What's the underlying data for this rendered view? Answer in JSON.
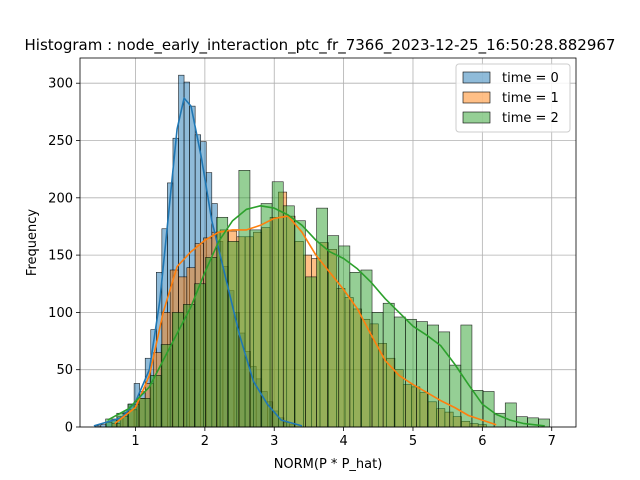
{
  "chart_data": {
    "type": "histogram",
    "title": "Histogram : node_early_interaction_ptc_fr_7366_2023-12-25_16:50:28.882967",
    "xlabel": "NORM(P * P_hat)",
    "ylabel": "Frequency",
    "xlim": [
      0.2,
      7.35
    ],
    "ylim": [
      0,
      322
    ],
    "xticks": [
      "1",
      "2",
      "3",
      "4",
      "5",
      "6",
      "7"
    ],
    "yticks": [
      "0",
      "50",
      "100",
      "150",
      "200",
      "250",
      "300"
    ],
    "grid": true,
    "legend_position": "top-right",
    "series": [
      {
        "name": "time = 0",
        "color": "#1f77b4",
        "bins": [
          [
            0.42,
            0.5,
            1
          ],
          [
            0.5,
            0.58,
            2
          ],
          [
            0.58,
            0.66,
            4
          ],
          [
            0.66,
            0.74,
            6
          ],
          [
            0.74,
            0.82,
            9
          ],
          [
            0.82,
            0.9,
            13
          ],
          [
            0.9,
            0.98,
            20
          ],
          [
            0.98,
            1.06,
            38
          ],
          [
            1.06,
            1.14,
            31
          ],
          [
            1.14,
            1.22,
            60
          ],
          [
            1.22,
            1.3,
            85
          ],
          [
            1.3,
            1.38,
            135
          ],
          [
            1.38,
            1.46,
            173
          ],
          [
            1.46,
            1.54,
            213
          ],
          [
            1.54,
            1.62,
            252
          ],
          [
            1.62,
            1.7,
            307
          ],
          [
            1.7,
            1.78,
            301
          ],
          [
            1.78,
            1.86,
            280
          ],
          [
            1.86,
            1.94,
            255
          ],
          [
            1.94,
            2.02,
            249
          ],
          [
            2.02,
            2.1,
            222
          ],
          [
            2.1,
            2.18,
            195
          ],
          [
            2.18,
            2.26,
            162
          ],
          [
            2.26,
            2.34,
            140
          ],
          [
            2.34,
            2.42,
            119
          ],
          [
            2.42,
            2.5,
            100
          ],
          [
            2.5,
            2.58,
            82
          ],
          [
            2.58,
            2.66,
            66
          ],
          [
            2.66,
            2.74,
            53
          ],
          [
            2.74,
            2.82,
            42
          ],
          [
            2.82,
            2.9,
            31
          ],
          [
            2.9,
            2.98,
            22
          ],
          [
            2.98,
            3.06,
            14
          ],
          [
            3.06,
            3.14,
            8
          ],
          [
            3.14,
            3.22,
            4
          ],
          [
            3.22,
            3.3,
            2
          ]
        ],
        "kde": [
          [
            0.4,
            1
          ],
          [
            0.8,
            8
          ],
          [
            1.0,
            22
          ],
          [
            1.2,
            50
          ],
          [
            1.35,
            110
          ],
          [
            1.5,
            200
          ],
          [
            1.6,
            260
          ],
          [
            1.7,
            287
          ],
          [
            1.8,
            280
          ],
          [
            1.95,
            235
          ],
          [
            2.1,
            180
          ],
          [
            2.3,
            130
          ],
          [
            2.5,
            80
          ],
          [
            2.7,
            40
          ],
          [
            2.9,
            20
          ],
          [
            3.1,
            6
          ],
          [
            3.4,
            1
          ]
        ]
      },
      {
        "name": "time = 1",
        "color": "#ff7f0e",
        "bins": [
          [
            0.66,
            0.78,
            3
          ],
          [
            0.78,
            0.9,
            9
          ],
          [
            0.9,
            1.02,
            15
          ],
          [
            1.02,
            1.14,
            25
          ],
          [
            1.14,
            1.26,
            38
          ],
          [
            1.26,
            1.38,
            65
          ],
          [
            1.38,
            1.5,
            100
          ],
          [
            1.5,
            1.62,
            137
          ],
          [
            1.62,
            1.74,
            131
          ],
          [
            1.74,
            1.86,
            139
          ],
          [
            1.86,
            1.98,
            160
          ],
          [
            1.98,
            2.1,
            165
          ],
          [
            2.1,
            2.22,
            170
          ],
          [
            2.22,
            2.34,
            172
          ],
          [
            2.34,
            2.46,
            171
          ],
          [
            2.46,
            2.58,
            166
          ],
          [
            2.58,
            2.7,
            166
          ],
          [
            2.7,
            2.82,
            170
          ],
          [
            2.82,
            2.94,
            174
          ],
          [
            2.94,
            3.06,
            183
          ],
          [
            3.06,
            3.18,
            205
          ],
          [
            3.18,
            3.3,
            184
          ],
          [
            3.3,
            3.42,
            162
          ],
          [
            3.42,
            3.54,
            150
          ],
          [
            3.54,
            3.66,
            147
          ],
          [
            3.66,
            3.78,
            161
          ],
          [
            3.78,
            3.9,
            155
          ],
          [
            3.9,
            4.02,
            121
          ],
          [
            4.02,
            4.14,
            113
          ],
          [
            4.14,
            4.26,
            103
          ],
          [
            4.26,
            4.38,
            94
          ],
          [
            4.38,
            4.5,
            90
          ],
          [
            4.5,
            4.62,
            73
          ],
          [
            4.62,
            4.74,
            60
          ],
          [
            4.74,
            4.86,
            50
          ],
          [
            4.86,
            4.98,
            37
          ],
          [
            4.98,
            5.1,
            35
          ],
          [
            5.1,
            5.22,
            30
          ],
          [
            5.22,
            5.34,
            22
          ],
          [
            5.34,
            5.46,
            16
          ],
          [
            5.46,
            5.58,
            13
          ],
          [
            5.58,
            5.7,
            9
          ],
          [
            5.7,
            5.82,
            5
          ],
          [
            5.82,
            5.94,
            3
          ],
          [
            5.94,
            6.06,
            2
          ]
        ],
        "kde": [
          [
            0.7,
            3
          ],
          [
            1.0,
            17
          ],
          [
            1.2,
            45
          ],
          [
            1.4,
            100
          ],
          [
            1.6,
            140
          ],
          [
            1.8,
            153
          ],
          [
            2.0,
            163
          ],
          [
            2.2,
            170
          ],
          [
            2.4,
            172
          ],
          [
            2.6,
            172
          ],
          [
            2.8,
            176
          ],
          [
            3.0,
            182
          ],
          [
            3.2,
            184
          ],
          [
            3.4,
            170
          ],
          [
            3.6,
            150
          ],
          [
            3.8,
            135
          ],
          [
            4.0,
            120
          ],
          [
            4.2,
            103
          ],
          [
            4.4,
            80
          ],
          [
            4.6,
            58
          ],
          [
            4.8,
            45
          ],
          [
            5.0,
            37
          ],
          [
            5.2,
            30
          ],
          [
            5.4,
            23
          ],
          [
            5.6,
            17
          ],
          [
            5.8,
            10
          ],
          [
            6.0,
            6
          ],
          [
            6.2,
            2
          ]
        ]
      },
      {
        "name": "time = 2",
        "color": "#2ca02c",
        "bins": [
          [
            0.57,
            0.73,
            7
          ],
          [
            0.73,
            0.89,
            12
          ],
          [
            0.89,
            1.05,
            20
          ],
          [
            1.05,
            1.21,
            25
          ],
          [
            1.21,
            1.37,
            45
          ],
          [
            1.37,
            1.53,
            72
          ],
          [
            1.53,
            1.69,
            100
          ],
          [
            1.69,
            1.85,
            107
          ],
          [
            1.85,
            2.01,
            125
          ],
          [
            2.01,
            2.17,
            148
          ],
          [
            2.17,
            2.33,
            183
          ],
          [
            2.33,
            2.49,
            162
          ],
          [
            2.49,
            2.65,
            224
          ],
          [
            2.65,
            2.81,
            172
          ],
          [
            2.81,
            2.97,
            195
          ],
          [
            2.97,
            3.13,
            214
          ],
          [
            3.13,
            3.29,
            193
          ],
          [
            3.29,
            3.45,
            180
          ],
          [
            3.45,
            3.61,
            131
          ],
          [
            3.61,
            3.77,
            191
          ],
          [
            3.77,
            3.93,
            167
          ],
          [
            3.93,
            4.09,
            158
          ],
          [
            4.09,
            4.25,
            135
          ],
          [
            4.25,
            4.41,
            137
          ],
          [
            4.41,
            4.57,
            100
          ],
          [
            4.57,
            4.73,
            108
          ],
          [
            4.73,
            4.89,
            96
          ],
          [
            4.89,
            5.05,
            94
          ],
          [
            5.05,
            5.21,
            92
          ],
          [
            5.21,
            5.37,
            89
          ],
          [
            5.37,
            5.53,
            83
          ],
          [
            5.53,
            5.69,
            54
          ],
          [
            5.69,
            5.85,
            89
          ],
          [
            5.85,
            6.01,
            32
          ],
          [
            6.01,
            6.17,
            31
          ],
          [
            6.17,
            6.33,
            12
          ],
          [
            6.33,
            6.49,
            21
          ],
          [
            6.49,
            6.65,
            9
          ],
          [
            6.65,
            6.81,
            8
          ],
          [
            6.81,
            6.97,
            7
          ]
        ],
        "kde": [
          [
            0.6,
            6
          ],
          [
            0.9,
            16
          ],
          [
            1.2,
            35
          ],
          [
            1.5,
            70
          ],
          [
            1.8,
            105
          ],
          [
            2.0,
            135
          ],
          [
            2.2,
            162
          ],
          [
            2.4,
            180
          ],
          [
            2.6,
            190
          ],
          [
            2.8,
            193
          ],
          [
            3.0,
            191
          ],
          [
            3.2,
            185
          ],
          [
            3.4,
            176
          ],
          [
            3.6,
            163
          ],
          [
            3.8,
            153
          ],
          [
            4.0,
            147
          ],
          [
            4.2,
            138
          ],
          [
            4.4,
            126
          ],
          [
            4.6,
            112
          ],
          [
            4.8,
            100
          ],
          [
            5.0,
            88
          ],
          [
            5.2,
            80
          ],
          [
            5.4,
            71
          ],
          [
            5.6,
            55
          ],
          [
            5.8,
            37
          ],
          [
            6.0,
            20
          ],
          [
            6.2,
            11
          ],
          [
            6.4,
            6
          ],
          [
            6.6,
            3
          ],
          [
            6.9,
            1
          ]
        ]
      }
    ]
  }
}
